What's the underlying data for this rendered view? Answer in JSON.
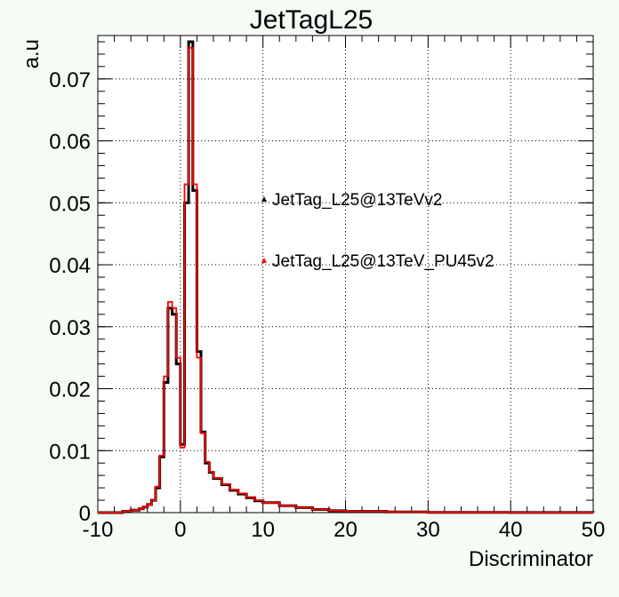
{
  "chart_data": {
    "type": "line",
    "title": "JetTagL25",
    "xlabel": "Discriminator",
    "ylabel": "a.u",
    "xlim": [
      -10,
      50
    ],
    "ylim": [
      0,
      0.077
    ],
    "xticks": [
      -10,
      0,
      10,
      20,
      30,
      40,
      50
    ],
    "xtick_labels": [
      "-10",
      "0",
      "10",
      "20",
      "30",
      "40",
      "50"
    ],
    "yticks": [
      0,
      0.01,
      0.02,
      0.03,
      0.04,
      0.05,
      0.06,
      0.07
    ],
    "ytick_labels": [
      "0",
      "0.01",
      "0.02",
      "0.03",
      "0.04",
      "0.05",
      "0.06",
      "0.07"
    ],
    "grid": true,
    "legend_position": "center-right",
    "series": [
      {
        "name": "JetTag_L25@13TeVv2",
        "color": "#000000",
        "x": [
          -10,
          -7,
          -6,
          -5,
          -4.5,
          -4,
          -3.5,
          -3,
          -2.5,
          -2,
          -1.5,
          -1,
          -0.5,
          0,
          0.5,
          1,
          1.5,
          2,
          2.5,
          3,
          3.5,
          4,
          5,
          6,
          7,
          8,
          9,
          10,
          12,
          14,
          16,
          18,
          20,
          25,
          30,
          40,
          50
        ],
        "y": [
          0,
          0.0002,
          0.0004,
          0.0006,
          0.0009,
          0.0013,
          0.002,
          0.004,
          0.009,
          0.021,
          0.033,
          0.032,
          0.024,
          0.011,
          0.05,
          0.076,
          0.052,
          0.026,
          0.013,
          0.008,
          0.0065,
          0.0055,
          0.0045,
          0.0036,
          0.003,
          0.0024,
          0.0019,
          0.0016,
          0.0011,
          0.0008,
          0.0005,
          0.0003,
          0.0002,
          0.0001,
          5e-05,
          2e-05,
          0
        ]
      },
      {
        "name": "JetTag_L25@13TeV_PU45v2",
        "color": "#ff0000",
        "x": [
          -10,
          -7,
          -6,
          -5,
          -4.5,
          -4,
          -3.5,
          -3,
          -2.5,
          -2,
          -1.5,
          -1,
          -0.5,
          0,
          0.5,
          1,
          1.5,
          2,
          2.5,
          3,
          3.5,
          4,
          5,
          6,
          7,
          8,
          9,
          10,
          12,
          14,
          16,
          18,
          20,
          25,
          30,
          40,
          50
        ],
        "y": [
          0,
          0.0002,
          0.0004,
          0.0006,
          0.0009,
          0.0013,
          0.002,
          0.0042,
          0.0092,
          0.022,
          0.034,
          0.033,
          0.025,
          0.0105,
          0.053,
          0.075,
          0.053,
          0.025,
          0.0128,
          0.0082,
          0.0066,
          0.0056,
          0.0046,
          0.0037,
          0.0031,
          0.0025,
          0.002,
          0.0016,
          0.0011,
          0.0008,
          0.0005,
          0.0003,
          0.0002,
          0.0001,
          5e-05,
          2e-05,
          0
        ]
      }
    ]
  }
}
